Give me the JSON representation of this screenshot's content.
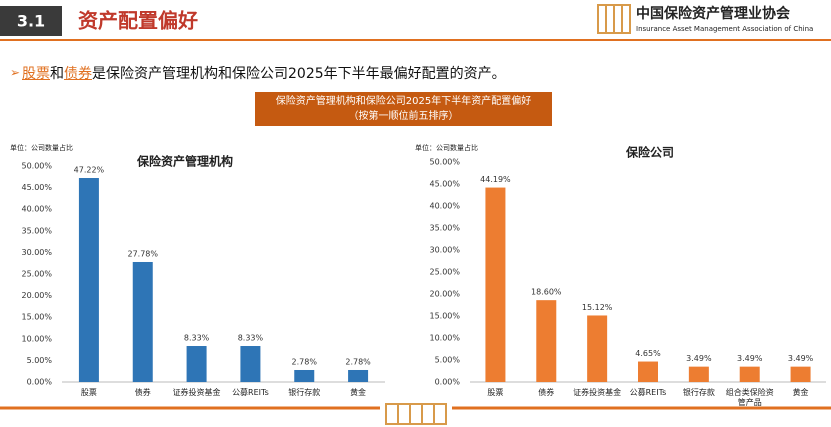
{
  "header": {
    "section": "3.1",
    "title": "资产配置偏好"
  },
  "logo": {
    "name": "中国保险资产管理业协会",
    "english": "Insurance Asset Management Association of China"
  },
  "bullet": {
    "parts": [
      "股票",
      "和",
      "债券",
      "是保险资产管理机构和保险公司2025年下半年最偏好配置的资产。"
    ]
  },
  "banner": {
    "line1": "保险资产管理机构和保险公司2025年下半年资产配置偏好",
    "line2": "（按第一顺位前五排序）"
  },
  "chart_data": [
    {
      "type": "bar",
      "title": "保险资产管理机构",
      "unit_label": "单位：公司数量占比",
      "color": "#2e75b6",
      "categories": [
        "股票",
        "债券",
        "证券投资基金",
        "公募REITs",
        "银行存款",
        "黄金"
      ],
      "values": [
        47.22,
        27.78,
        8.33,
        8.33,
        2.78,
        2.78
      ],
      "value_labels": [
        "47.22%",
        "27.78%",
        "8.33%",
        "8.33%",
        "2.78%",
        "2.78%"
      ],
      "ylim": [
        0,
        50
      ],
      "yticks": [
        {
          "value": 0,
          "label": "0.00%"
        },
        {
          "value": 5,
          "label": "5.00%"
        },
        {
          "value": 10,
          "label": "10.00%"
        },
        {
          "value": 15,
          "label": "15.00%"
        },
        {
          "value": 20,
          "label": "20.00%"
        },
        {
          "value": 25,
          "label": "25.00%"
        },
        {
          "value": 30,
          "label": "30.00%"
        },
        {
          "value": 35,
          "label": "35.00%"
        },
        {
          "value": 40,
          "label": "40.00%"
        },
        {
          "value": 45,
          "label": "45.00%"
        },
        {
          "value": 50,
          "label": "50.00%"
        }
      ],
      "grid": false
    },
    {
      "type": "bar",
      "title": "保险公司",
      "unit_label": "单位：公司数量占比",
      "color": "#ed7d31",
      "categories": [
        "股票",
        "债券",
        "证券投资基金",
        "公募REITs",
        "银行存款",
        "组合类保险资管产品",
        "黄金"
      ],
      "values": [
        44.19,
        18.6,
        15.12,
        4.65,
        3.49,
        3.49,
        3.49
      ],
      "value_labels": [
        "44.19%",
        "18.60%",
        "15.12%",
        "4.65%",
        "3.49%",
        "3.49%",
        "3.49%"
      ],
      "ylim": [
        0,
        50
      ],
      "yticks": [
        {
          "value": 0,
          "label": "0.00%"
        },
        {
          "value": 5,
          "label": "5.00%"
        },
        {
          "value": 10,
          "label": "10.00%"
        },
        {
          "value": 15,
          "label": "15.00%"
        },
        {
          "value": 20,
          "label": "20.00%"
        },
        {
          "value": 25,
          "label": "25.00%"
        },
        {
          "value": 30,
          "label": "30.00%"
        },
        {
          "value": 35,
          "label": "35.00%"
        },
        {
          "value": 40,
          "label": "40.00%"
        },
        {
          "value": 45,
          "label": "45.00%"
        },
        {
          "value": 50,
          "label": "50.00%"
        }
      ],
      "grid": false
    }
  ]
}
